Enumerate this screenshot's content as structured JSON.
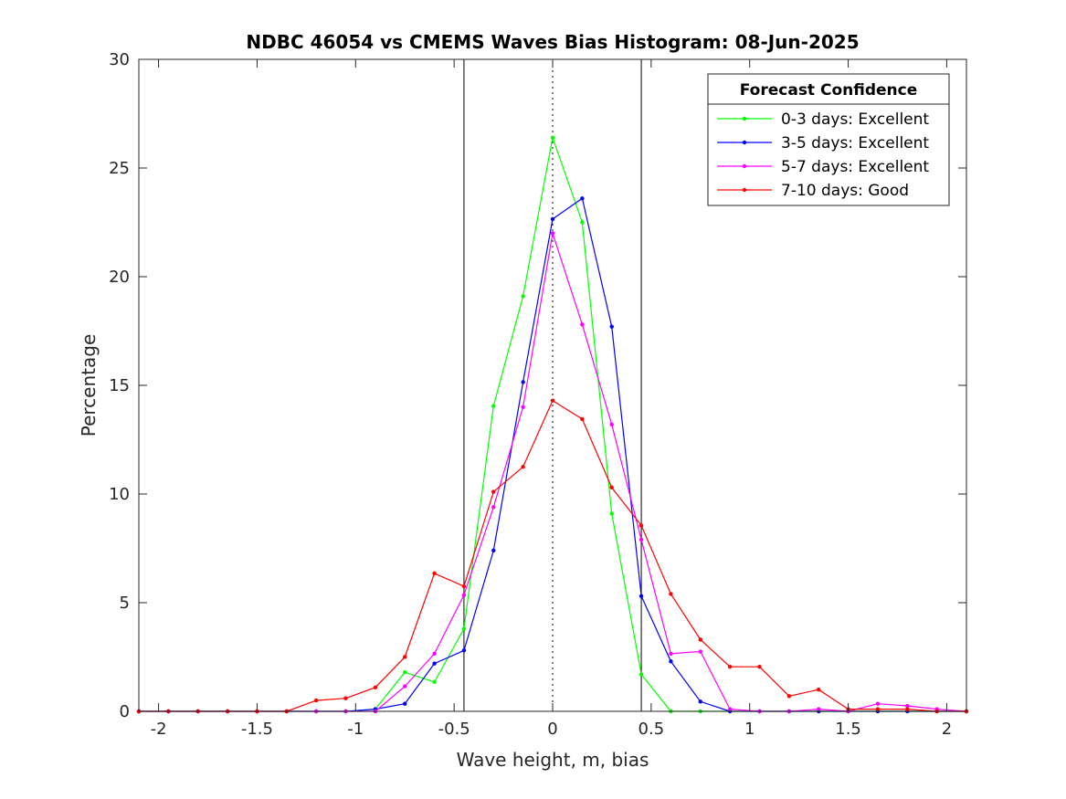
{
  "chart_data": {
    "type": "line",
    "title": "NDBC 46054 vs CMEMS Waves Bias Histogram: 08-Jun-2025",
    "xlabel": "Wave height, m, bias",
    "ylabel": "Percentage",
    "xlim": [
      -2.1,
      2.1
    ],
    "ylim": [
      0,
      30
    ],
    "xticks": [
      -2,
      -1.5,
      -1,
      -0.5,
      0,
      0.5,
      1,
      1.5,
      2
    ],
    "xtick_labels": [
      "-2",
      "-1.5",
      "-1",
      "-0.5",
      "0",
      "0.5",
      "1",
      "1.5",
      "2"
    ],
    "yticks": [
      0,
      5,
      10,
      15,
      20,
      25,
      30
    ],
    "ytick_labels": [
      "0",
      "5",
      "10",
      "15",
      "20",
      "25",
      "30"
    ],
    "grid": false,
    "legend": {
      "title": "Forecast Confidence",
      "placement": "top-right"
    },
    "reference_lines": [
      {
        "x": -0.45,
        "style": "solid",
        "color": "#000000"
      },
      {
        "x": 0,
        "style": "dotted",
        "color": "#000000"
      },
      {
        "x": 0.45,
        "style": "solid",
        "color": "#000000"
      }
    ],
    "x": [
      -2.1,
      -1.95,
      -1.8,
      -1.65,
      -1.5,
      -1.35,
      -1.2,
      -1.05,
      -0.9,
      -0.75,
      -0.6,
      -0.45,
      -0.3,
      -0.15,
      0,
      0.15,
      0.3,
      0.45,
      0.6,
      0.75,
      0.9,
      1.05,
      1.2,
      1.35,
      1.5,
      1.65,
      1.8,
      1.95,
      2.1
    ],
    "series": [
      {
        "name": "0-3 days: Excellent",
        "color": "#00ff00",
        "values": [
          0,
          0,
          0,
          0,
          0,
          0,
          0,
          0,
          0.1,
          1.8,
          1.35,
          3.8,
          14.05,
          19.1,
          26.4,
          22.5,
          9.1,
          1.7,
          0,
          0,
          0,
          0,
          0,
          0,
          0,
          0,
          0,
          0,
          0
        ]
      },
      {
        "name": "3-5 days: Excellent",
        "color": "#0000ff",
        "values": [
          0,
          0,
          0,
          0,
          0,
          0,
          0,
          0,
          0.1,
          0.35,
          2.2,
          2.8,
          7.4,
          15.15,
          22.65,
          23.6,
          17.7,
          5.3,
          2.3,
          0.45,
          0,
          0,
          0,
          0,
          0,
          0,
          0,
          0,
          0
        ]
      },
      {
        "name": "5-7 days: Excellent",
        "color": "#ff00ff",
        "values": [
          0,
          0,
          0,
          0,
          0,
          0,
          0,
          0,
          0,
          1.15,
          2.65,
          5.35,
          9.4,
          14.0,
          22.0,
          17.8,
          13.2,
          7.9,
          2.65,
          2.75,
          0.1,
          0,
          0,
          0.1,
          0,
          0.35,
          0.25,
          0.1,
          0
        ]
      },
      {
        "name": "7-10 days: Good",
        "color": "#ff0000",
        "values": [
          0,
          0,
          0,
          0,
          0,
          0,
          0.5,
          0.6,
          1.1,
          2.5,
          6.35,
          5.75,
          10.1,
          11.25,
          14.3,
          13.45,
          10.3,
          8.55,
          5.4,
          3.3,
          2.05,
          2.05,
          0.7,
          1.0,
          0.1,
          0.1,
          0.1,
          0,
          0
        ]
      }
    ]
  }
}
